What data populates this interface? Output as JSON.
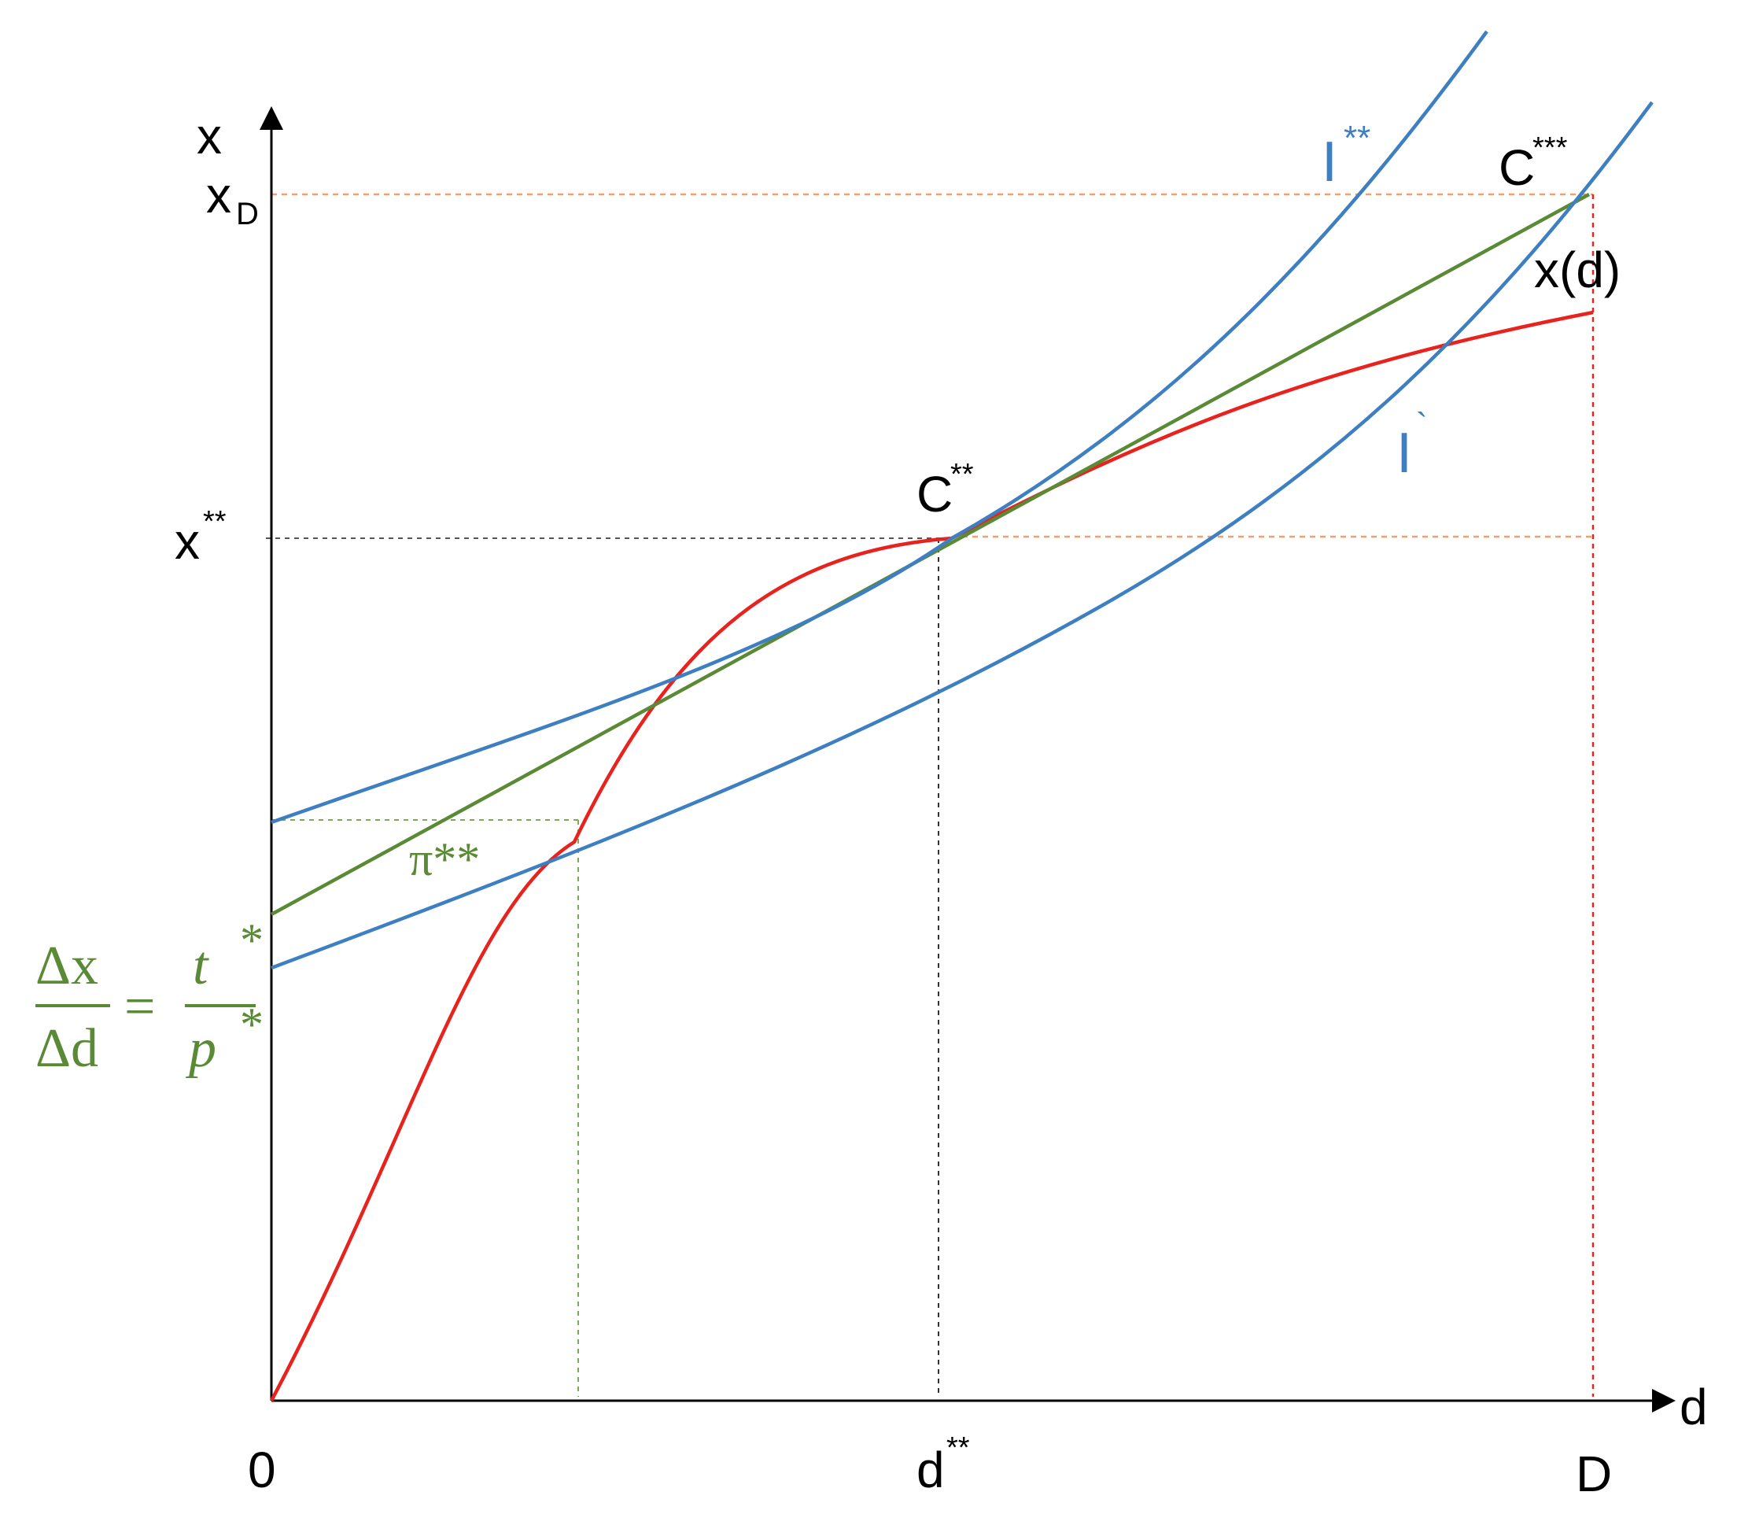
{
  "axes": {
    "y_label": "x",
    "x_label": "d",
    "origin_label": "0"
  },
  "ticks": {
    "x_D": {
      "base": "x",
      "sub": "D"
    },
    "x_star2": {
      "base": "x",
      "sup": "**"
    },
    "d_star2": {
      "base": "d",
      "sup": "**"
    },
    "D": "D"
  },
  "points": {
    "C_star2": {
      "base": "C",
      "sup": "**"
    },
    "C_star3": {
      "base": "C",
      "sup": "***"
    }
  },
  "curves": {
    "I_star2": {
      "base": "I",
      "sup": "**"
    },
    "I_prime": {
      "base": "I",
      "sup": "`"
    },
    "x_of_d": "x(d)",
    "pi_star2": "π**"
  },
  "formula": {
    "num_left": "Δx",
    "den_left": "Δd",
    "equals": "=",
    "num_right": "t",
    "num_right_sup": "*",
    "den_right": "p",
    "den_right_sup": "*"
  },
  "colors": {
    "indifference": "#3d7fc1",
    "budget_line": "#5a8a35",
    "production": "#e8231e",
    "guide_orange": "#f0a070",
    "guide_red": "#e8231e",
    "guide_black": "#333333",
    "guide_green": "#7aab55",
    "axis": "#000000"
  }
}
